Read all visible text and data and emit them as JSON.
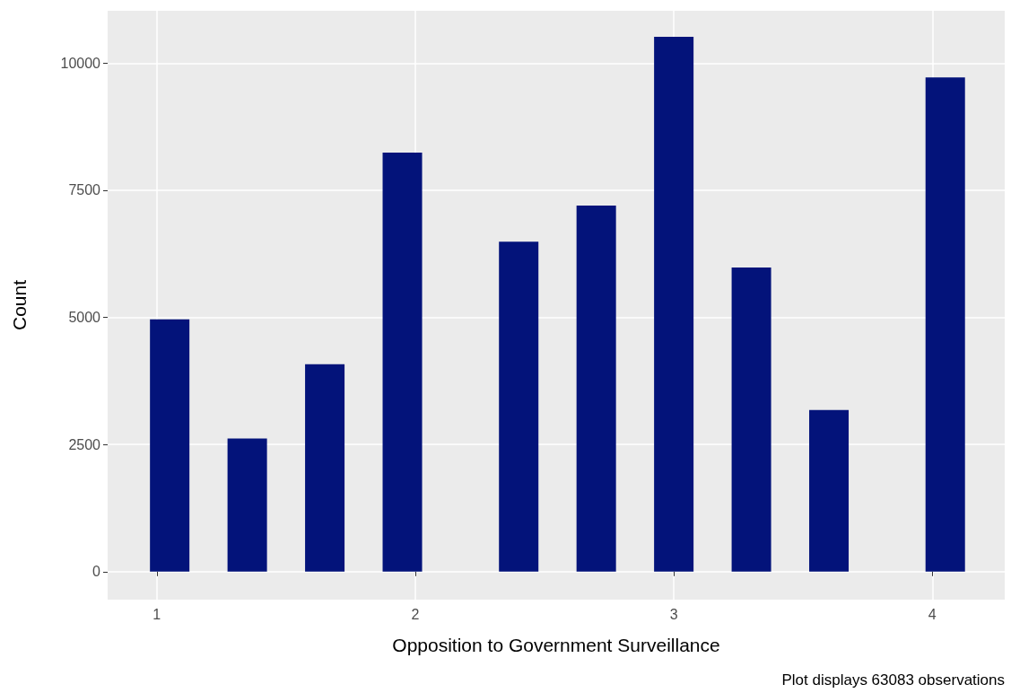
{
  "chart_data": {
    "type": "bar",
    "xlabel": "Opposition to Government Surveillance",
    "ylabel": "Count",
    "x": [
      1.05,
      1.35,
      1.65,
      1.95,
      2.4,
      2.7,
      3.0,
      3.3,
      3.6,
      4.05
    ],
    "values": [
      4960,
      2620,
      4080,
      8240,
      6490,
      7200,
      10520,
      5980,
      3180,
      9720
    ],
    "color": "#03137a",
    "xlim": [
      0.81,
      4.28
    ],
    "xticks": [
      1,
      2,
      3,
      4
    ],
    "ylim": [
      -550,
      11030
    ],
    "yticks": [
      0,
      2500,
      5000,
      7500,
      10000
    ],
    "grid": true,
    "annotations": [
      "Plot displays 63083 observations"
    ]
  }
}
